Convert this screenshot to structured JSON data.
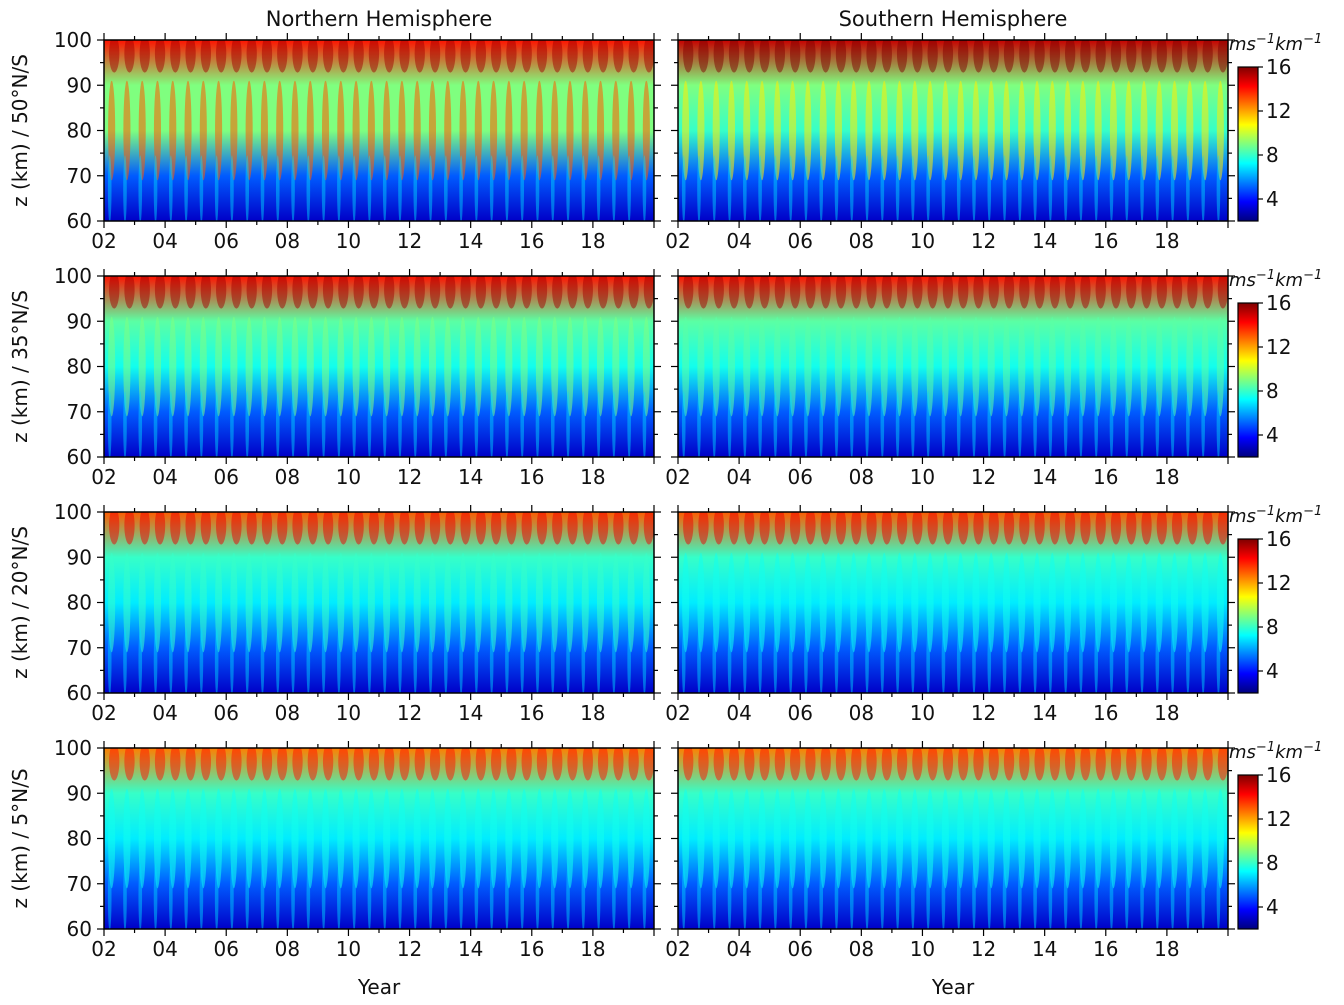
{
  "figure": {
    "columns": [
      "Northern Hemisphere",
      "Southern Hemisphere"
    ],
    "xlabel": "Year",
    "colorscale": [
      "#00007f",
      "#0000ff",
      "#007fff",
      "#00ffff",
      "#7fff7f",
      "#ffff00",
      "#ff7f00",
      "#ff0000",
      "#7f0000"
    ]
  },
  "chart_data": {
    "type": "heatmap",
    "x_range": [
      2002,
      2020
    ],
    "x_ticks": [
      "02",
      "04",
      "06",
      "08",
      "10",
      "12",
      "14",
      "16",
      "18"
    ],
    "x_tick_values": [
      2002,
      2004,
      2006,
      2008,
      2010,
      2012,
      2014,
      2016,
      2018
    ],
    "y_range": [
      60,
      100
    ],
    "y_ticks": [
      "60",
      "70",
      "80",
      "90",
      "100"
    ],
    "y_tick_values": [
      60,
      70,
      80,
      90,
      100
    ],
    "colorbar": {
      "unit_text": "ms",
      "unit_sup1": "−1",
      "unit_text2": "km",
      "unit_sup2": "−1",
      "range": [
        2,
        16
      ],
      "ticks": [
        "4",
        "8",
        "12",
        "16"
      ],
      "tick_values": [
        4,
        8,
        12,
        16
      ]
    },
    "rows": [
      {
        "ylabel": "z (km) / 50°N/S",
        "panels": [
          {
            "hemisphere": "Northern Hemisphere",
            "levels_by_altitude": {
              "60": 3,
              "70": 5,
              "80": 9,
              "90": 9,
              "100": 14
            },
            "seasonal_peak_80km": 13
          },
          {
            "hemisphere": "Southern Hemisphere",
            "levels_by_altitude": {
              "60": 3,
              "70": 5,
              "80": 8,
              "90": 9,
              "100": 15
            },
            "seasonal_peak_80km": 11
          }
        ]
      },
      {
        "ylabel": "z (km) / 35°N/S",
        "panels": [
          {
            "hemisphere": "Northern Hemisphere",
            "levels_by_altitude": {
              "60": 3,
              "70": 5,
              "80": 7.5,
              "90": 8.5,
              "100": 14
            },
            "seasonal_peak_80km": 9
          },
          {
            "hemisphere": "Southern Hemisphere",
            "levels_by_altitude": {
              "60": 3,
              "70": 5,
              "80": 7.5,
              "90": 8.5,
              "100": 14
            },
            "seasonal_peak_80km": 8.5
          }
        ]
      },
      {
        "ylabel": "z (km) / 20°N/S",
        "panels": [
          {
            "hemisphere": "Northern Hemisphere",
            "levels_by_altitude": {
              "60": 3,
              "70": 5,
              "80": 7,
              "90": 8,
              "100": 13
            },
            "seasonal_peak_80km": 8
          },
          {
            "hemisphere": "Southern Hemisphere",
            "levels_by_altitude": {
              "60": 3,
              "70": 5,
              "80": 7,
              "90": 8,
              "100": 13
            },
            "seasonal_peak_80km": 7.5
          }
        ]
      },
      {
        "ylabel": "z (km) / 5°N/S",
        "panels": [
          {
            "hemisphere": "Northern Hemisphere",
            "levels_by_altitude": {
              "60": 3,
              "70": 5,
              "80": 7,
              "90": 8,
              "100": 12.5
            },
            "seasonal_peak_80km": 7.5
          },
          {
            "hemisphere": "Southern Hemisphere",
            "levels_by_altitude": {
              "60": 3,
              "70": 5,
              "80": 7,
              "90": 8,
              "100": 12.5
            },
            "seasonal_peak_80km": 7.5
          }
        ]
      }
    ]
  }
}
